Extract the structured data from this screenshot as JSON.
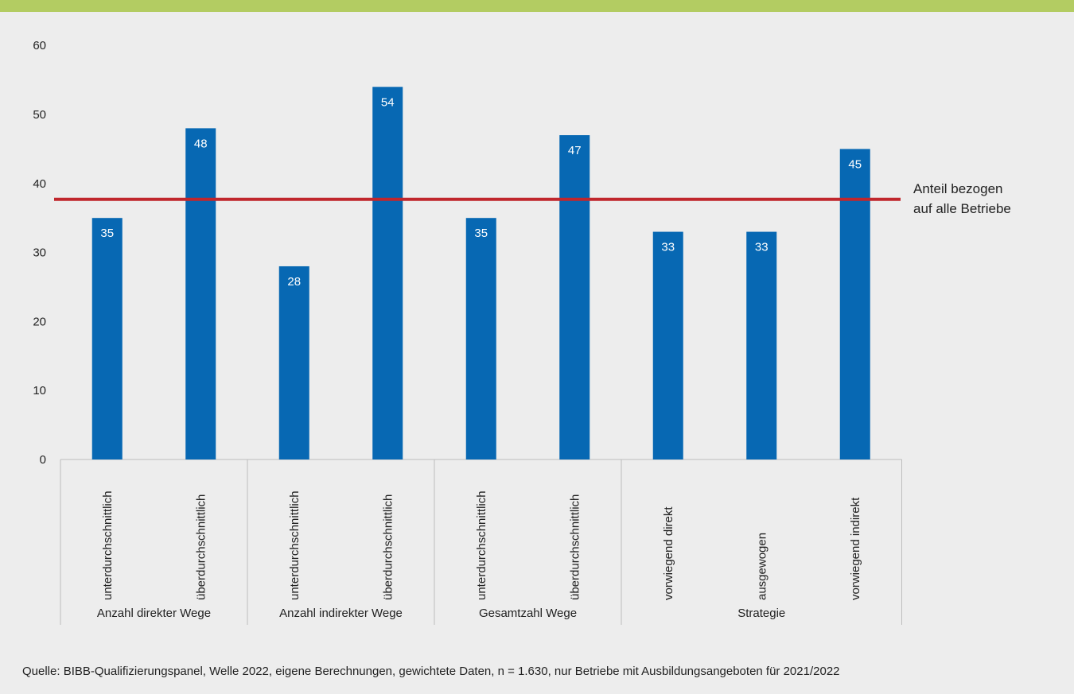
{
  "chart_data": {
    "type": "bar",
    "groups": [
      {
        "label": "Anzahl direkter Wege",
        "categories": [
          "unterdurchschnittlich",
          "überdurchschnittlich"
        ],
        "values": [
          35,
          48
        ]
      },
      {
        "label": "Anzahl indirekter Wege",
        "categories": [
          "unterdurchschnittlich",
          "überdurchschnittlich"
        ],
        "values": [
          28,
          54
        ]
      },
      {
        "label": "Gesamtzahl Wege",
        "categories": [
          "unterdurchschnittlich",
          "überdurchschnittlich"
        ],
        "values": [
          35,
          47
        ]
      },
      {
        "label": "Strategie",
        "categories": [
          "vorwiegend direkt",
          "ausgewogen",
          "vorwiegend indirekt"
        ],
        "values": [
          33,
          33,
          45
        ]
      }
    ],
    "reference_line": {
      "value": 37.7,
      "label_lines": [
        "Anteil bezogen",
        "auf alle Betriebe"
      ],
      "color": "#c0272d"
    },
    "ylim": [
      0,
      60
    ],
    "yticks": [
      0,
      10,
      20,
      30,
      40,
      50,
      60
    ],
    "bar_color": "#0768b3",
    "grid": false
  },
  "source_text": "Quelle: BIBB-Qualifizierungspanel, Welle 2022, eigene Berechnungen, gewichtete Daten, n = 1.630, nur Betriebe mit Ausbildungsangeboten für 2021/2022"
}
